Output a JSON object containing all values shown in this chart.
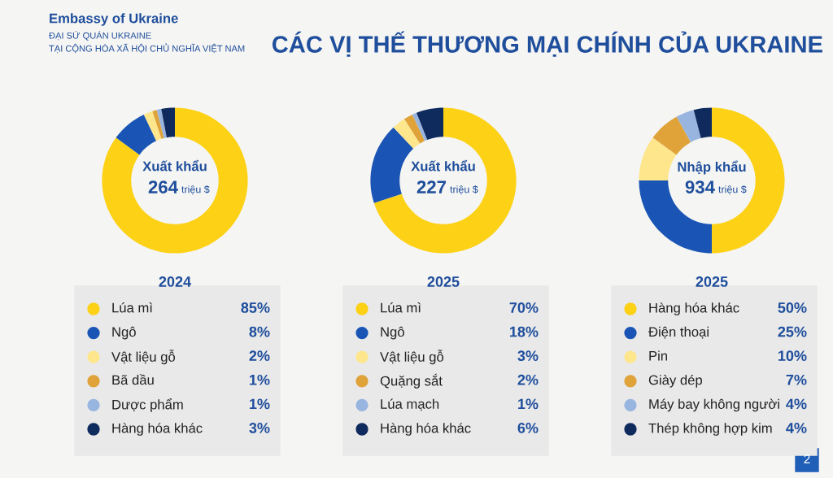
{
  "chart_data": [
    {
      "type": "other",
      "title": "CÁC VỊ THẾ THƯƠNG MẠI CHÍNH CỦA UKRAINE",
      "annotations": [
        "Embassy of Ukraine",
        "ĐẠI SỨ QUÁN UKRAINE",
        "TẠI CỘNG HÒA XÃ HỘI CHỦ NGHĨA VIỆT NAM",
        "2"
      ]
    },
    {
      "type": "donut",
      "title": "2024",
      "annotations": [
        "Xuất khẩu",
        "264",
        "triệu $"
      ],
      "legend": "bottom",
      "categories": [
        "Lúa mì",
        "Ngô",
        "Vật liệu gỗ",
        "Bã dầu",
        "Dược phẩm",
        "Hàng hóa khác"
      ],
      "values": [
        85,
        8,
        2,
        1,
        1,
        3
      ],
      "value_labels": [
        "85%",
        "8%",
        "2%",
        "1%",
        "1%",
        "3%"
      ],
      "colors": [
        "#fcd116",
        "#1a55b5",
        "#fde68c",
        "#dfa33a",
        "#98b5e0",
        "#0f2b5e"
      ]
    },
    {
      "type": "donut",
      "title": "2025",
      "annotations": [
        "Xuất khẩu",
        "227",
        "triệu $"
      ],
      "legend": "bottom",
      "categories": [
        "Lúa mì",
        "Ngô",
        "Vật liệu gỗ",
        "Quặng sắt",
        "Lúa mạch",
        "Hàng hóa khác"
      ],
      "values": [
        70,
        18,
        3,
        2,
        1,
        6
      ],
      "value_labels": [
        "70%",
        "18%",
        "3%",
        "2%",
        "1%",
        "6%"
      ],
      "colors": [
        "#fcd116",
        "#1a55b5",
        "#fde68c",
        "#dfa33a",
        "#98b5e0",
        "#0f2b5e"
      ]
    },
    {
      "type": "donut",
      "title": "2025",
      "annotations": [
        "Nhập khẩu",
        "934",
        "triệu $"
      ],
      "legend": "bottom",
      "categories": [
        "Hàng hóa khác",
        "Điện thoại",
        "Pin",
        "Giày dép",
        "Máy bay không người",
        "Thép không hợp kim"
      ],
      "values": [
        50,
        25,
        10,
        7,
        4,
        4
      ],
      "value_labels": [
        "50%",
        "25%",
        "10%",
        "7%",
        "4%",
        "4%"
      ],
      "colors": [
        "#fcd116",
        "#1a55b5",
        "#fde68c",
        "#dfa33a",
        "#98b5e0",
        "#0f2b5e"
      ]
    }
  ]
}
